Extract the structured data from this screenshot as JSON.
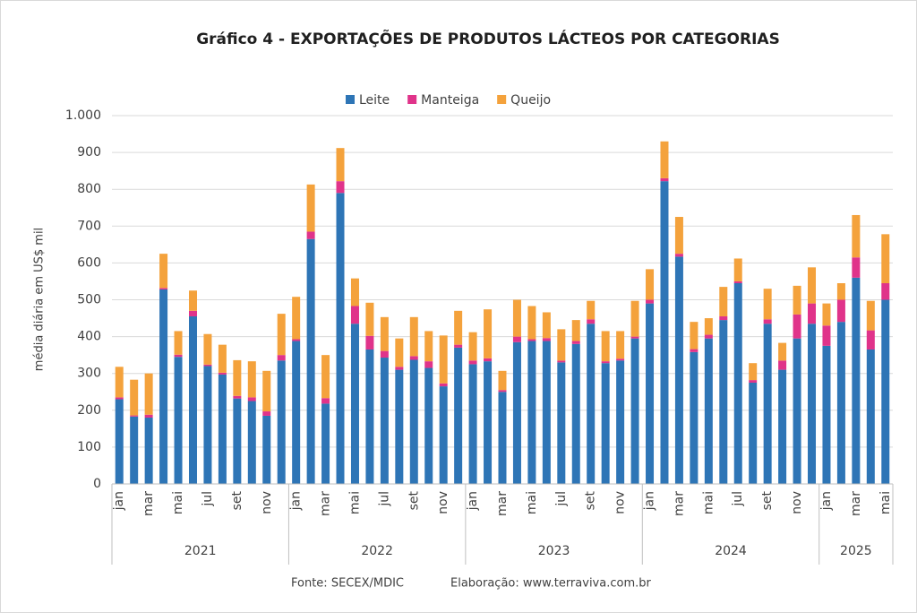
{
  "chart_data": {
    "type": "stacked_bar",
    "title": "Gráfico 4 - EXPORTAÇÕES DE PRODUTOS LÁCTEOS POR CATEGORIAS",
    "ylabel": "média diária em US$ mil",
    "source": "Fonte: SECEX/MDIC",
    "credit": "Elaboração: www.terraviva.com.br",
    "categories": [
      "jan",
      null,
      "mar",
      null,
      "mai",
      null,
      "jul",
      null,
      "set",
      null,
      "nov",
      null,
      "jan",
      null,
      "mar",
      null,
      "mai",
      null,
      "jul",
      null,
      "set",
      null,
      "nov",
      null,
      "jan",
      null,
      "mar",
      null,
      "mai",
      null,
      "jul",
      null,
      "set",
      null,
      "nov",
      null,
      "jan",
      null,
      "mar",
      null,
      "mai",
      null,
      "jul",
      null,
      "set",
      null,
      "nov",
      null,
      "jan",
      null,
      "mar",
      null,
      "mai"
    ],
    "year_groups": [
      "2021",
      "2022",
      "2023",
      "2024",
      "2025"
    ],
    "series": [
      {
        "name": "Leite",
        "color": "#2e75b6",
        "values": [
          230,
          183,
          180,
          528,
          345,
          455,
          320,
          297,
          232,
          225,
          185,
          335,
          388,
          665,
          218,
          790,
          435,
          365,
          343,
          310,
          337,
          315,
          265,
          370,
          325,
          333,
          250,
          385,
          388,
          388,
          330,
          380,
          435,
          328,
          335,
          395,
          490,
          822,
          617,
          358,
          395,
          445,
          545,
          275,
          435,
          310,
          395,
          435,
          375,
          440,
          560,
          365,
          500
        ]
      },
      {
        "name": "Manteiga",
        "color": "#e0338a",
        "values": [
          5,
          3,
          8,
          4,
          6,
          15,
          4,
          5,
          7,
          10,
          12,
          15,
          5,
          20,
          15,
          32,
          48,
          37,
          18,
          8,
          10,
          18,
          8,
          8,
          10,
          8,
          5,
          15,
          5,
          8,
          5,
          8,
          12,
          5,
          5,
          5,
          10,
          8,
          8,
          8,
          10,
          10,
          5,
          7,
          12,
          25,
          65,
          55,
          55,
          60,
          55,
          52,
          45
        ]
      },
      {
        "name": "Queijo",
        "color": "#f4a23c",
        "values": [
          83,
          97,
          112,
          93,
          64,
          55,
          83,
          76,
          97,
          98,
          110,
          112,
          115,
          128,
          117,
          90,
          75,
          90,
          92,
          77,
          106,
          82,
          130,
          92,
          77,
          133,
          52,
          100,
          90,
          70,
          85,
          57,
          50,
          82,
          75,
          97,
          83,
          100,
          100,
          74,
          45,
          80,
          62,
          46,
          83,
          48,
          78,
          98,
          60,
          45,
          115,
          80,
          133
        ]
      }
    ],
    "ylim": [
      0,
      1000
    ],
    "yticks": [
      0,
      100,
      200,
      300,
      400,
      500,
      600,
      700,
      800,
      900,
      {
        "value": 1000,
        "label": "1.000"
      }
    ],
    "grid": true,
    "legend": "top"
  }
}
